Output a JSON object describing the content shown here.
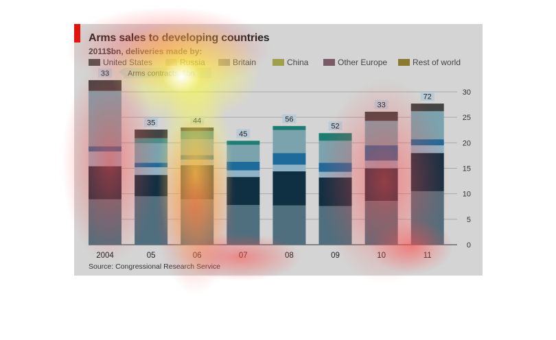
{
  "chart_data": {
    "type": "bar",
    "stacked": true,
    "title": "Arms sales to developing countries",
    "subtitle": "2011$bn, deliveries made by:",
    "source": "Source: Congressional Research Service",
    "categories": [
      "2004",
      "05",
      "06",
      "07",
      "08",
      "09",
      "10",
      "11"
    ],
    "series": [
      {
        "name": "United States",
        "color": "#4f6f7e",
        "values": [
          8.9,
          9.5,
          8.9,
          7.8,
          7.7,
          7.6,
          8.6,
          10.5
        ]
      },
      {
        "name": "",
        "color": "#0f2f42",
        "values": [
          6.5,
          4.2,
          6.7,
          5.5,
          6.7,
          5.6,
          6.4,
          7.5
        ]
      },
      {
        "name": "Russia",
        "color": "#8fb3c6",
        "values": [
          2.9,
          1.5,
          1.1,
          1.3,
          1.3,
          1.1,
          1.5,
          1.5
        ]
      },
      {
        "name": "",
        "color": "#1e6a9a",
        "values": [
          1.0,
          0.9,
          0.9,
          1.7,
          2.3,
          1.8,
          3.0,
          1.2
        ]
      },
      {
        "name": "Britain",
        "color": "#7aa3ae",
        "values": [
          10.9,
          3.8,
          3.1,
          3.3,
          4.5,
          4.3,
          4.8,
          5.5
        ]
      },
      {
        "name": "China",
        "color": "#4d8d8a",
        "values": [
          0,
          1.0,
          1.6,
          0,
          0,
          0,
          0,
          0
        ]
      },
      {
        "name": "Other Europe",
        "color": "#1d7d72",
        "values": [
          0,
          0,
          0,
          0.8,
          0.8,
          1.5,
          0,
          0
        ]
      },
      {
        "name": "Rest of world",
        "color": "#444444",
        "values": [
          2.1,
          1.7,
          0.7,
          0,
          0,
          0,
          1.8,
          1.5
        ]
      }
    ],
    "legend": [
      {
        "label": "United States",
        "color": "#525252"
      },
      {
        "label": "Russia",
        "color": "#b0b0b0"
      },
      {
        "label": "Britain",
        "color": "#8e8e8e"
      },
      {
        "label": "China",
        "color": "#9ea04c"
      },
      {
        "label": "Other Europe",
        "color": "#7a5a66"
      },
      {
        "label": "Rest of world",
        "color": "#8a7a2e"
      }
    ],
    "contracts_label": "Arms contracts, $bn",
    "contracts": [
      33,
      35,
      44,
      45,
      56,
      52,
      33,
      72
    ],
    "yticks": [
      0,
      5,
      10,
      15,
      20,
      25,
      30
    ],
    "ylim": [
      0,
      30
    ],
    "grid": true,
    "legend_position": "top"
  }
}
